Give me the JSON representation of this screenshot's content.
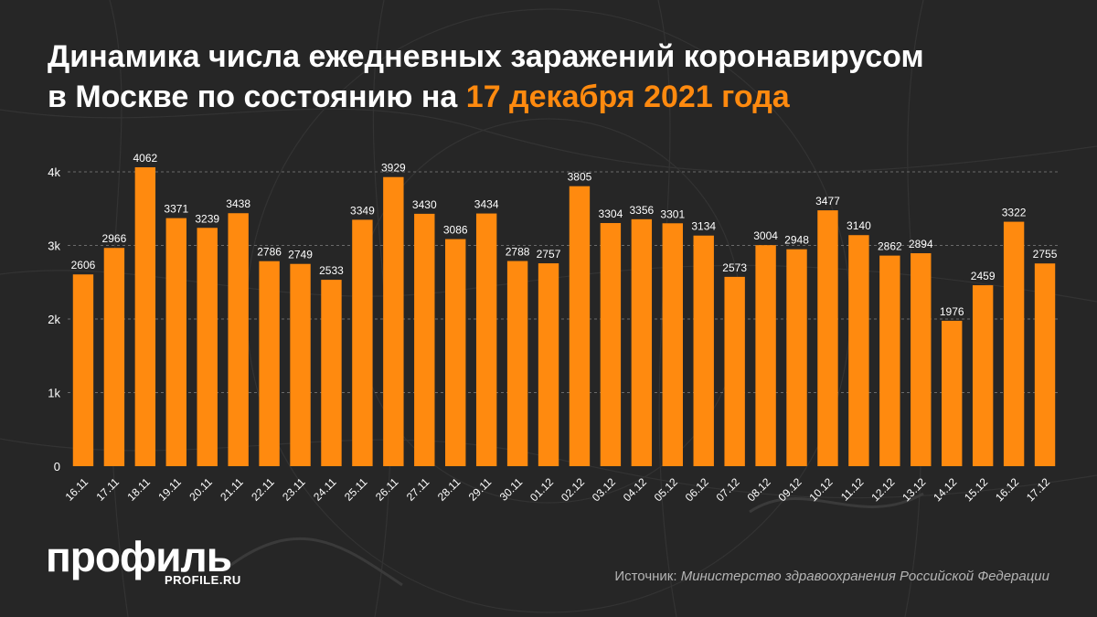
{
  "title": {
    "line1": "Динамика числа ежедневных заражений коронавирусом",
    "line2_prefix": "в Москве по состоянию на ",
    "line2_accent": "17 декабря 2021 года"
  },
  "brand": {
    "logo_text": "профиль",
    "site": "PROFILE.RU"
  },
  "source": {
    "label": "Источник: ",
    "value": "Министерство здравоохранения Российской Федерации"
  },
  "colors": {
    "background": "#262626",
    "bar": "#ff8a0f",
    "accent": "#ff8a0f",
    "text": "#ffffff",
    "grid": "#6a6a6a"
  },
  "chart_data": {
    "type": "bar",
    "categories": [
      "16.11",
      "17.11",
      "18.11",
      "19.11",
      "20.11",
      "21.11",
      "22.11",
      "23.11",
      "24.11",
      "25.11",
      "26.11",
      "27.11",
      "28.11",
      "29.11",
      "30.11",
      "01.12",
      "02.12",
      "03.12",
      "04.12",
      "05.12",
      "06.12",
      "07.12",
      "08.12",
      "09.12",
      "10.12",
      "11.12",
      "12.12",
      "13.12",
      "14.12",
      "15.12",
      "16.12",
      "17.12"
    ],
    "values": [
      2606,
      2966,
      4062,
      3371,
      3239,
      3438,
      2786,
      2749,
      2533,
      3349,
      3929,
      3430,
      3086,
      3434,
      2788,
      2757,
      3805,
      3304,
      3356,
      3301,
      3134,
      2573,
      3004,
      2948,
      3477,
      3140,
      2862,
      2894,
      1976,
      2459,
      3322,
      2755
    ],
    "ylim": [
      0,
      4000
    ],
    "yticks": [
      0,
      1000,
      2000,
      3000,
      4000
    ],
    "ytick_labels": [
      "0",
      "1k",
      "2k",
      "3k",
      "4k"
    ],
    "grid": "dashed horizontal",
    "data_labels": true,
    "xlabel_rotation": -45
  }
}
